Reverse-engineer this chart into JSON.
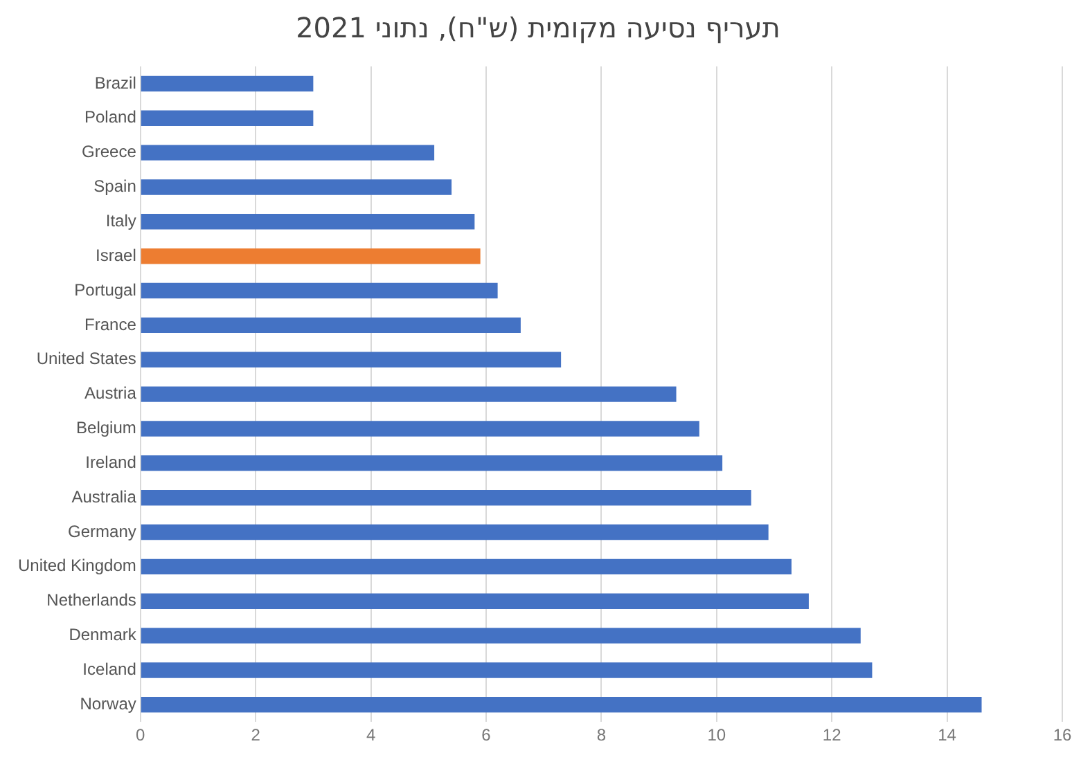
{
  "chart_data": {
    "type": "bar",
    "orientation": "horizontal",
    "title": "תעריף נסיעה מקומית (ש\"ח), נתוני 2021",
    "categories": [
      "Brazil",
      "Poland",
      "Greece",
      "Spain",
      "Italy",
      "Israel",
      "Portugal",
      "France",
      "United States",
      "Austria",
      "Belgium",
      "Ireland",
      "Australia",
      "Germany",
      "United Kingdom",
      "Netherlands",
      "Denmark",
      "Iceland",
      "Norway"
    ],
    "values": [
      3.0,
      3.0,
      5.1,
      5.4,
      5.8,
      5.9,
      6.2,
      6.6,
      7.3,
      9.3,
      9.7,
      10.1,
      10.6,
      10.9,
      11.3,
      11.6,
      12.5,
      12.7,
      14.6
    ],
    "colors": [
      "#4472c4",
      "#4472c4",
      "#4472c4",
      "#4472c4",
      "#4472c4",
      "#ed7d31",
      "#4472c4",
      "#4472c4",
      "#4472c4",
      "#4472c4",
      "#4472c4",
      "#4472c4",
      "#4472c4",
      "#4472c4",
      "#4472c4",
      "#4472c4",
      "#4472c4",
      "#4472c4",
      "#4472c4"
    ],
    "xlim": [
      0,
      16
    ],
    "xticks": [
      0,
      2,
      4,
      6,
      8,
      10,
      12,
      14,
      16
    ],
    "grid": "x",
    "legend": false
  }
}
